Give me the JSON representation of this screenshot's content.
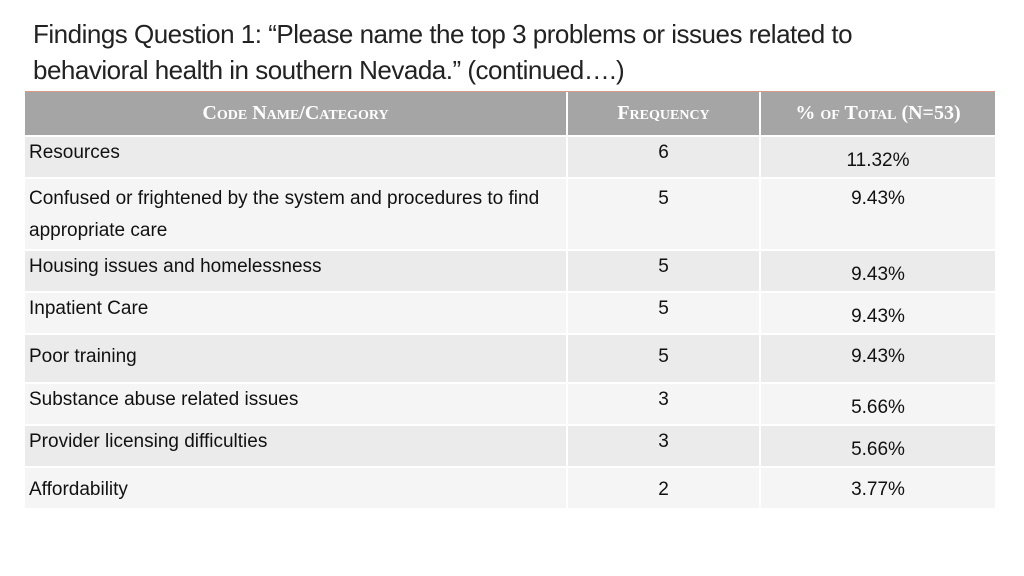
{
  "slide": {
    "title_line1": "Findings Question 1:  “Please name the top 3 problems or issues related to",
    "title_line2": "behavioral health in southern Nevada.” (continued….)"
  },
  "table": {
    "headers": {
      "category": "Code Name/Category",
      "frequency": "Frequency",
      "percent": "% of Total (N=53)"
    },
    "rows": [
      {
        "name": "Resources",
        "frequency": "6",
        "percent": "11.32%"
      },
      {
        "name": "Confused or frightened by the system and procedures to find appropriate care",
        "frequency": "5",
        "percent": "9.43%"
      },
      {
        "name": "Housing issues and homelessness",
        "frequency": "5",
        "percent": "9.43%"
      },
      {
        "name": "Inpatient Care",
        "frequency": "5",
        "percent": "9.43%"
      },
      {
        "name": "Poor training",
        "frequency": "5",
        "percent": "9.43%"
      },
      {
        "name": "Substance abuse related issues",
        "frequency": "3",
        "percent": "5.66%"
      },
      {
        "name": "Provider licensing difficulties",
        "frequency": "3",
        "percent": "5.66%"
      },
      {
        "name": "Affordability",
        "frequency": "2",
        "percent": "3.77%"
      }
    ]
  }
}
